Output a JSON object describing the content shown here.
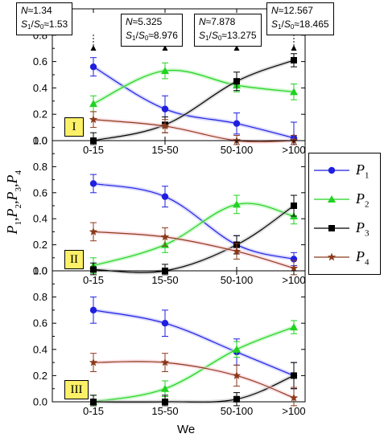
{
  "chart_data": {
    "type": "line",
    "categories": [
      "0-15",
      "15-50",
      "50-100",
      ">100"
    ],
    "xlabel": "We",
    "ylabel": "P1,P2,P3,P4",
    "ylim": [
      0.0,
      1.0
    ],
    "yticks": [
      "0.0",
      "0.2",
      "0.4",
      "0.6",
      "0.8",
      "1.0"
    ],
    "legend_position": "right, spanning panel II",
    "legend": [
      {
        "key": "P1",
        "base": "P",
        "sub": "1",
        "color": "#1f1fe0",
        "marker": "circle"
      },
      {
        "key": "P2",
        "base": "P",
        "sub": "2",
        "color": "#22d222",
        "marker": "triangle"
      },
      {
        "key": "P3",
        "base": "P",
        "sub": "3",
        "color": "#000000",
        "marker": "square"
      },
      {
        "key": "P4",
        "base": "P",
        "sub": "4",
        "color": "#8b3a1a",
        "marker": "star"
      }
    ],
    "panels": [
      {
        "label": "I",
        "series": [
          {
            "key": "P1",
            "values": [
              0.56,
              0.24,
              0.13,
              0.02
            ],
            "err": [
              0.07,
              0.1,
              0.08,
              0.12
            ]
          },
          {
            "key": "P2",
            "values": [
              0.28,
              0.53,
              0.42,
              0.37
            ],
            "err": [
              0.06,
              0.06,
              0.05,
              0.06
            ]
          },
          {
            "key": "P3",
            "values": [
              0.0,
              0.12,
              0.45,
              0.61
            ],
            "err": [
              0.06,
              0.06,
              0.07,
              0.05
            ]
          },
          {
            "key": "P4",
            "values": [
              0.16,
              0.11,
              0.0,
              0.0
            ],
            "err": [
              0.06,
              0.05,
              0.04,
              0.04
            ]
          }
        ],
        "annotations": [
          {
            "category": "0-15",
            "N": "1.34",
            "S": "1.53"
          },
          {
            "category": "15-50",
            "N": "5.325",
            "S": "8.976"
          },
          {
            "category": "50-100",
            "N": "7.878",
            "S": "13.275"
          },
          {
            "category": ">100",
            "N": "12.567",
            "S": "18.465"
          }
        ]
      },
      {
        "label": "II",
        "series": [
          {
            "key": "P1",
            "values": [
              0.67,
              0.57,
              0.2,
              0.09
            ],
            "err": [
              0.07,
              0.08,
              0.07,
              0.05
            ]
          },
          {
            "key": "P2",
            "values": [
              0.04,
              0.2,
              0.51,
              0.42
            ],
            "err": [
              0.06,
              0.06,
              0.07,
              0.06
            ]
          },
          {
            "key": "P3",
            "values": [
              0.01,
              0.0,
              0.2,
              0.5
            ],
            "err": [
              0.05,
              0.05,
              0.07,
              0.08
            ]
          },
          {
            "key": "P4",
            "values": [
              0.3,
              0.26,
              0.15,
              0.02
            ],
            "err": [
              0.07,
              0.07,
              0.06,
              0.06
            ]
          }
        ]
      },
      {
        "label": "III",
        "series": [
          {
            "key": "P1",
            "values": [
              0.7,
              0.6,
              0.38,
              0.2
            ],
            "err": [
              0.1,
              0.1,
              0.1,
              0.1
            ]
          },
          {
            "key": "P2",
            "values": [
              0.0,
              0.1,
              0.4,
              0.57
            ],
            "err": [
              0.05,
              0.06,
              0.06,
              0.05
            ]
          },
          {
            "key": "P3",
            "values": [
              0.0,
              0.0,
              0.02,
              0.2
            ],
            "err": [
              0.05,
              0.05,
              0.05,
              0.1
            ]
          },
          {
            "key": "P4",
            "values": [
              0.3,
              0.3,
              0.2,
              0.03
            ],
            "err": [
              0.07,
              0.07,
              0.08,
              0.08
            ]
          }
        ]
      }
    ],
    "annotation_text": {
      "N": "N",
      "approx": "≈",
      "S": "S",
      "S_sub1": "1",
      "S_sub0": "0",
      "slash": "/"
    }
  }
}
